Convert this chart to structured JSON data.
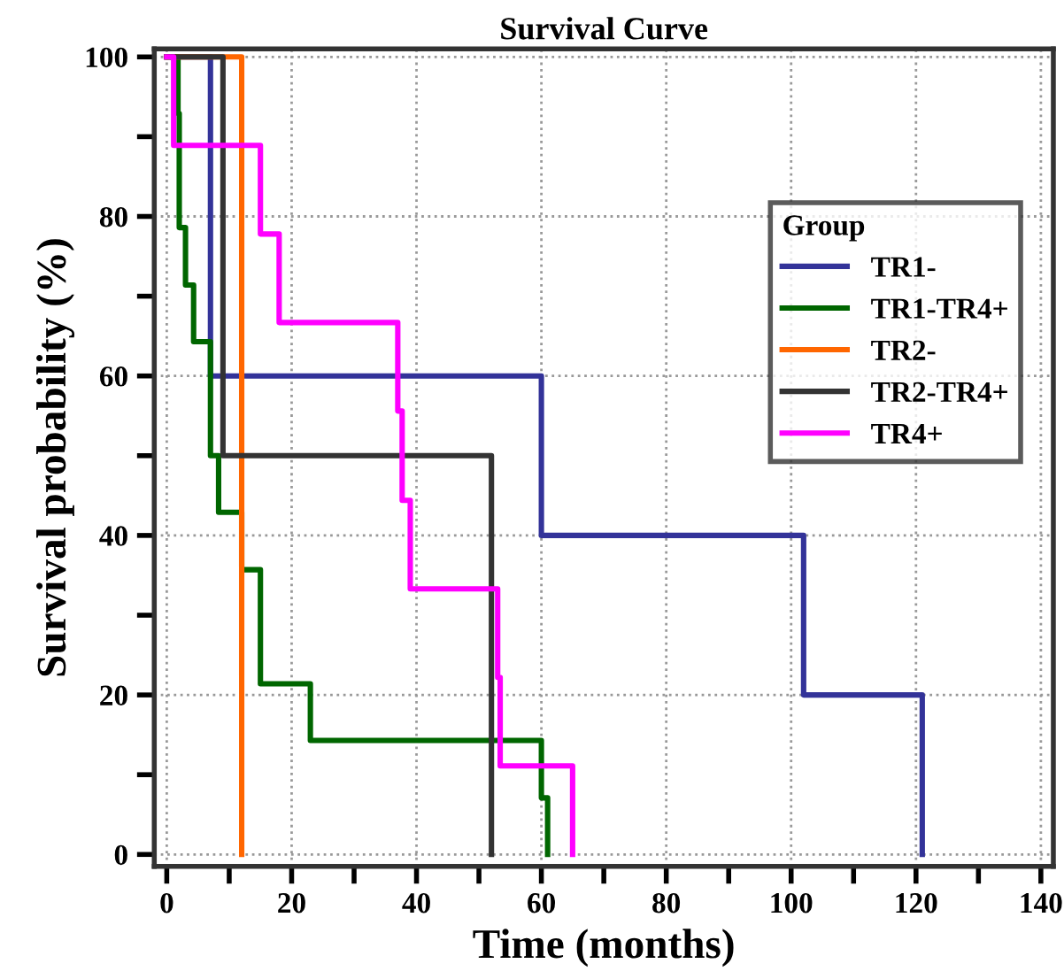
{
  "chart_data": {
    "type": "step",
    "title": "Survival Curve",
    "xlabel": "Time (months)",
    "ylabel": "Survival probability (%)",
    "legend_title": "Group",
    "legend": "upper right",
    "grid": true,
    "line_style": "solid",
    "marker": "none",
    "xlim": [
      -2,
      142
    ],
    "ylim": [
      -1.5,
      101
    ],
    "xticks": [
      0,
      {
        "value": 10,
        "label": null
      },
      20,
      {
        "value": 30,
        "label": null
      },
      40,
      {
        "value": 50,
        "label": null
      },
      60,
      {
        "value": 70,
        "label": null
      },
      80,
      {
        "value": 90,
        "label": null
      },
      100,
      {
        "value": 110,
        "label": null
      },
      120,
      {
        "value": 130,
        "label": null
      },
      140
    ],
    "yticks": [
      0,
      {
        "value": 10,
        "label": null
      },
      20,
      {
        "value": 30,
        "label": null
      },
      40,
      {
        "value": 50,
        "label": null
      },
      60,
      {
        "value": 70,
        "label": null
      },
      80,
      {
        "value": 90,
        "label": null
      },
      100
    ],
    "series": [
      {
        "name": "TR1-",
        "color": "#333399",
        "x": [
          0,
          7,
          60,
          102,
          121
        ],
        "values": [
          100,
          60,
          40,
          20,
          0
        ]
      },
      {
        "name": "TR1-TR4+",
        "color": "#006600",
        "x": [
          0,
          1.8,
          2,
          3,
          4.3,
          7,
          8.3,
          12,
          15,
          23,
          60,
          61
        ],
        "values": [
          100,
          92.9,
          78.6,
          71.4,
          64.3,
          50,
          42.9,
          35.7,
          21.4,
          14.3,
          7.1,
          0
        ]
      },
      {
        "name": "TR2-",
        "color": "#ff6600",
        "x": [
          0,
          12
        ],
        "values": [
          100,
          0
        ]
      },
      {
        "name": "TR2-TR4+",
        "color": "#333333",
        "x": [
          0,
          9,
          52
        ],
        "values": [
          100,
          50,
          0
        ]
      },
      {
        "name": "TR4+",
        "color": "#ff00ff",
        "x": [
          0,
          1.1,
          15,
          18,
          37,
          37.7,
          39,
          53,
          53.4,
          65
        ],
        "values": [
          100,
          88.9,
          77.8,
          66.7,
          55.6,
          44.4,
          33.3,
          22.2,
          11.1,
          0
        ]
      }
    ]
  }
}
